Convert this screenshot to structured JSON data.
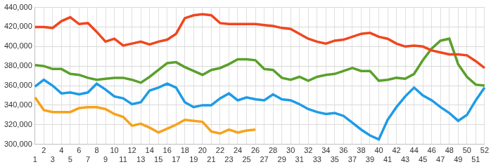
{
  "chart_data": {
    "type": "line",
    "categories": [
      "1",
      "2",
      "3",
      "4",
      "5",
      "6",
      "7",
      "8",
      "9",
      "10",
      "11",
      "12",
      "13",
      "14",
      "15",
      "16",
      "17",
      "18",
      "19",
      "20",
      "21",
      "22",
      "23",
      "24",
      "25",
      "26",
      "27",
      "28",
      "29",
      "30",
      "31",
      "32",
      "33",
      "34",
      "35",
      "36",
      "37",
      "38",
      "39",
      "40",
      "41",
      "42",
      "43",
      "44",
      "45",
      "46",
      "47",
      "48",
      "49",
      "50",
      "51",
      "52"
    ],
    "series": [
      {
        "color": "#f0461e",
        "values": [
          420000,
          420000,
          419000,
          426000,
          430000,
          423000,
          424000,
          415000,
          405000,
          408000,
          401000,
          403000,
          405000,
          402000,
          405000,
          407000,
          413000,
          429000,
          432000,
          433000,
          432000,
          424000,
          423000,
          423000,
          423000,
          423000,
          422000,
          421000,
          419000,
          418000,
          413000,
          408000,
          405000,
          403000,
          406000,
          407000,
          410000,
          413000,
          414000,
          410000,
          408000,
          403000,
          400000,
          401000,
          400000,
          396000,
          394000,
          392000,
          392000,
          391000,
          385000,
          378000
        ]
      },
      {
        "color": "#1e9be6",
        "values": [
          359000,
          366000,
          360000,
          352000,
          353000,
          351000,
          353000,
          362000,
          356000,
          349000,
          347000,
          341000,
          343000,
          355000,
          358000,
          362000,
          358000,
          343000,
          338000,
          340000,
          340000,
          347000,
          352000,
          345000,
          348000,
          346000,
          345000,
          351000,
          346000,
          345000,
          341000,
          336000,
          333000,
          331000,
          332000,
          329000,
          322000,
          315000,
          309000,
          305000,
          325000,
          338000,
          349000,
          358000,
          350000,
          345000,
          338000,
          332000,
          324000,
          330000,
          345000,
          358000
        ]
      },
      {
        "color": "#5aa02c",
        "values": [
          381000,
          380000,
          377000,
          377000,
          372000,
          371000,
          368000,
          366000,
          367000,
          368000,
          368000,
          366000,
          363000,
          369000,
          376000,
          383000,
          384000,
          379000,
          375000,
          371000,
          376000,
          378000,
          382000,
          387000,
          387000,
          386000,
          377000,
          376000,
          368000,
          366000,
          369000,
          365000,
          369000,
          371000,
          372000,
          375000,
          378000,
          375000,
          375000,
          365000,
          366000,
          368000,
          367000,
          372000,
          386000,
          398000,
          406000,
          408000,
          382000,
          369000,
          361000,
          360000
        ]
      },
      {
        "color": "#f7a21b",
        "values": [
          348000,
          335000,
          333000,
          333000,
          333000,
          337000,
          338000,
          338000,
          336000,
          331000,
          328000,
          319000,
          321000,
          317000,
          312000,
          316000,
          320000,
          325000,
          324000,
          323000,
          313000,
          311000,
          315000,
          312000,
          314000,
          315000,
          null,
          null,
          null,
          null,
          null,
          null,
          null,
          null,
          null,
          null,
          null,
          null,
          null,
          null,
          null,
          null,
          null,
          null,
          null,
          null,
          null,
          null,
          null,
          null,
          null,
          null
        ]
      }
    ],
    "ylim": [
      300000,
      440000
    ],
    "yticks": [
      {
        "value": 300000,
        "label": "300,000"
      },
      {
        "value": 320000,
        "label": "320,000"
      },
      {
        "value": 340000,
        "label": "340,000"
      },
      {
        "value": 360000,
        "label": "360,000"
      },
      {
        "value": 380000,
        "label": "380,000"
      },
      {
        "value": 400000,
        "label": "400,000"
      },
      {
        "value": 420000,
        "label": "420,000"
      },
      {
        "value": 440000,
        "label": "440,000"
      }
    ],
    "grid": true
  }
}
